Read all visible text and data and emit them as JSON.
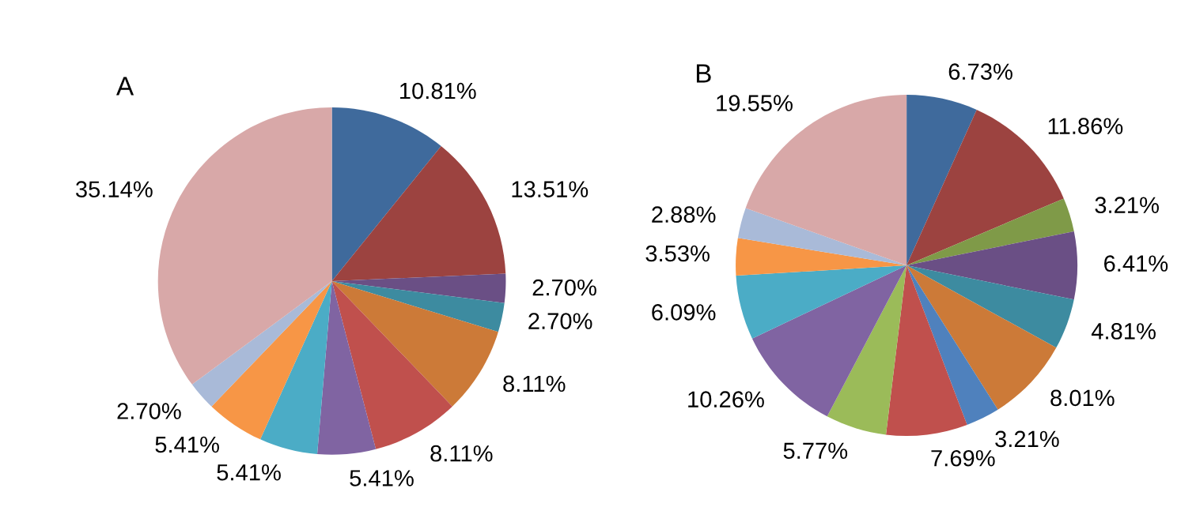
{
  "chart_data": [
    {
      "type": "pie",
      "title": "A",
      "categories": [
        null,
        null,
        null,
        null,
        null,
        null,
        null,
        null,
        null,
        null,
        null
      ],
      "values": [
        10.81,
        13.51,
        2.7,
        2.7,
        8.11,
        8.11,
        5.41,
        5.41,
        5.41,
        2.7,
        35.14
      ],
      "value_labels": [
        "10.81%",
        "13.51%",
        "2.70%",
        "2.70%",
        "8.11%",
        "8.11%",
        "5.41%",
        "5.41%",
        "5.41%",
        "2.70%",
        "35.14%"
      ],
      "colors": [
        "#3f6a9c",
        "#9c4340",
        "#6a4f85",
        "#3d8ba0",
        "#cc7a38",
        "#c0504d",
        "#8064a2",
        "#4bacc6",
        "#f79646",
        "#a9bad8",
        "#d8a8a8"
      ]
    },
    {
      "type": "pie",
      "title": "B",
      "categories": [
        null,
        null,
        null,
        null,
        null,
        null,
        null,
        null,
        null,
        null,
        null,
        null,
        null,
        null
      ],
      "values": [
        6.73,
        11.86,
        3.21,
        6.41,
        4.81,
        8.01,
        3.21,
        7.69,
        5.77,
        10.26,
        6.09,
        3.53,
        2.88,
        19.55
      ],
      "value_labels": [
        "6.73%",
        "11.86%",
        "3.21%",
        "6.41%",
        "4.81%",
        "8.01%",
        "3.21%",
        "7.69%",
        "5.77%",
        "10.26%",
        "6.09%",
        "3.53%",
        "2.88%",
        "19.55%"
      ],
      "colors": [
        "#3f6a9c",
        "#9c4340",
        "#7f9a48",
        "#6a4f85",
        "#3d8ba0",
        "#cc7a38",
        "#4f81bd",
        "#c0504d",
        "#9bbb59",
        "#8064a2",
        "#4bacc6",
        "#f79646",
        "#a9bad8",
        "#d8a8a8"
      ]
    }
  ]
}
